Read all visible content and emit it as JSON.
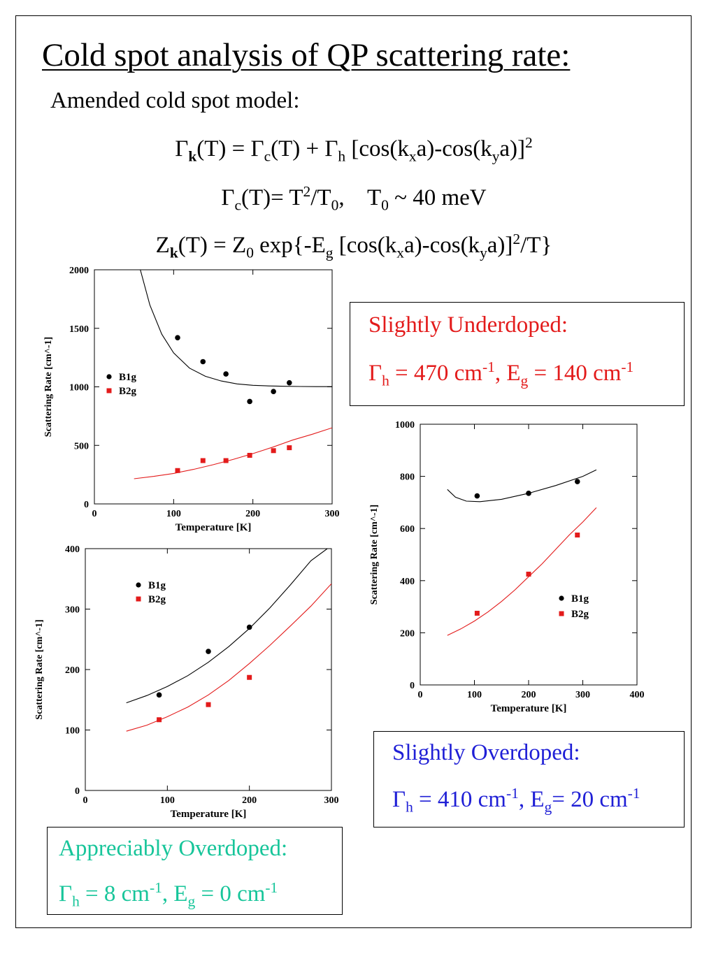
{
  "page": {
    "title": "Cold spot analysis of QP scattering rate:",
    "subtitle": "Amended cold spot model:",
    "eq1": {
      "gamma_k": "Γ",
      "k": "k",
      "part1": "(T) = Γ",
      "c": "c",
      "part2": "(T) + Γ",
      "h": "h",
      "part3": " [cos(k",
      "x": "x",
      "part4": "a)-cos(k",
      "y": "y",
      "part5": "a)]",
      "sq": "2"
    },
    "eq2": {
      "lhs": "Γ",
      "c": "c",
      "part1": "(T)= T",
      "sq": "2",
      "part2": "/T",
      "zero": "0",
      "part3": ",    T",
      "zero2": "0",
      "part4": " ~ 40 meV"
    },
    "eq3": {
      "lhs": "Z",
      "k": "k",
      "part1": "(T) = Z",
      "zero": "0",
      "part2": " exp{-E",
      "g": "g",
      "part3": " [cos(k",
      "x": "x",
      "part4": "a)-cos(k",
      "y": "y",
      "part5": "a)]",
      "sq": "2",
      "part6": "/T}"
    }
  },
  "boxes": {
    "underdoped": {
      "color": "#e31b1b",
      "heading": "Slightly Underdoped:",
      "gamma": "Γ",
      "h": "h",
      "gamma_val": " = 470 cm",
      "exp1": "-1",
      "sep": ", E",
      "g": "g",
      "eg_val": " = 140 cm",
      "exp2": "-1"
    },
    "overdoped": {
      "color": "#1f1fd6",
      "heading": "Slightly Overdoped:",
      "gamma": "Γ",
      "h": "h",
      "gamma_val": " = 410 cm",
      "exp1": "-1",
      "sep": ", E",
      "g": "g",
      "eg_val": "= 20 cm",
      "exp2": "-1"
    },
    "appreciably": {
      "color": "#17c59a",
      "heading": "Appreciably Overdoped:",
      "gamma": "Γ",
      "h": "h",
      "gamma_val": " = 8 cm",
      "exp1": "-1",
      "sep": ", E",
      "g": "g",
      "eg_val": " = 0 cm",
      "exp2": "-1"
    }
  },
  "chart_data": [
    {
      "type": "scatter",
      "title": "",
      "xlabel": "Temperature [K]",
      "ylabel": "Scattering Rate [cm^-1]",
      "xlim": [
        0,
        300
      ],
      "ylim": [
        0,
        2000
      ],
      "xticks": [
        0,
        100,
        200,
        300
      ],
      "yticks": [
        0,
        500,
        1000,
        1500,
        2000
      ],
      "grid": false,
      "legend_position": "middle-left",
      "series": [
        {
          "name": "B1g",
          "color": "#000000",
          "marker": "circle",
          "x": [
            105,
            137,
            166,
            196,
            226,
            246
          ],
          "y": [
            1420,
            1215,
            1110,
            875,
            960,
            1035
          ],
          "fit": {
            "x": [
              58,
              70,
              85,
              100,
              120,
              140,
              160,
              180,
              200,
              220,
              240,
              260,
              280,
              300
            ],
            "y": [
              2000,
              1700,
              1450,
              1290,
              1160,
              1090,
              1050,
              1025,
              1013,
              1008,
              1005,
              1003,
              1002,
              1002
            ]
          }
        },
        {
          "name": "B2g",
          "color": "#e31b1b",
          "marker": "square",
          "x": [
            105,
            137,
            166,
            196,
            226,
            246
          ],
          "y": [
            285,
            370,
            370,
            415,
            455,
            480
          ],
          "fit": {
            "x": [
              50,
              75,
              100,
              125,
              150,
              175,
              200,
              225,
              250,
              275,
              300
            ],
            "y": [
              215,
              235,
              260,
              295,
              335,
              380,
              430,
              485,
              545,
              595,
              650
            ]
          }
        }
      ]
    },
    {
      "type": "scatter",
      "title": "",
      "xlabel": "Temperature [K]",
      "ylabel": "Scattering Rate [cm^-1]",
      "xlim": [
        0,
        400
      ],
      "ylim": [
        0,
        1000
      ],
      "xticks": [
        0,
        100,
        200,
        300,
        400
      ],
      "yticks": [
        0,
        200,
        400,
        600,
        800,
        1000
      ],
      "grid": false,
      "legend_position": "lower-right",
      "series": [
        {
          "name": "B1g",
          "color": "#000000",
          "marker": "circle",
          "x": [
            105,
            200,
            290
          ],
          "y": [
            725,
            735,
            780
          ],
          "fit": {
            "x": [
              50,
              65,
              85,
              110,
              150,
              200,
              250,
              300,
              325
            ],
            "y": [
              750,
              720,
              705,
              703,
              712,
              735,
              765,
              800,
              825
            ]
          }
        },
        {
          "name": "B2g",
          "color": "#e31b1b",
          "marker": "square",
          "x": [
            105,
            200,
            290
          ],
          "y": [
            275,
            425,
            575
          ],
          "fit": {
            "x": [
              50,
              75,
              100,
              125,
              150,
              175,
              200,
              225,
              250,
              275,
              300,
              325
            ],
            "y": [
              190,
              215,
              245,
              280,
              320,
              365,
              415,
              465,
              520,
              575,
              625,
              680
            ]
          }
        }
      ]
    },
    {
      "type": "scatter",
      "title": "",
      "xlabel": "Temperature [K]",
      "ylabel": "Scattering Rate [cm^-1]",
      "xlim": [
        0,
        300
      ],
      "ylim": [
        0,
        400
      ],
      "xticks": [
        0,
        100,
        200,
        300
      ],
      "yticks": [
        0,
        100,
        200,
        300,
        400
      ],
      "grid": false,
      "legend_position": "top-left",
      "series": [
        {
          "name": "B1g",
          "color": "#000000",
          "marker": "circle",
          "x": [
            90,
            150,
            200
          ],
          "y": [
            158,
            230,
            270
          ],
          "fit": {
            "x": [
              50,
              75,
              100,
              125,
              150,
              175,
              200,
              225,
              250,
              275,
              295
            ],
            "y": [
              145,
              157,
              172,
              190,
              212,
              238,
              268,
              302,
              340,
              380,
              400
            ]
          }
        },
        {
          "name": "B2g",
          "color": "#e31b1b",
          "marker": "square",
          "x": [
            90,
            150,
            200
          ],
          "y": [
            117,
            142,
            187
          ],
          "fit": {
            "x": [
              50,
              75,
              100,
              125,
              150,
              175,
              200,
              225,
              250,
              275,
              300
            ],
            "y": [
              98,
              108,
              122,
              138,
              158,
              182,
              210,
              240,
              272,
              305,
              342
            ]
          }
        }
      ]
    }
  ]
}
